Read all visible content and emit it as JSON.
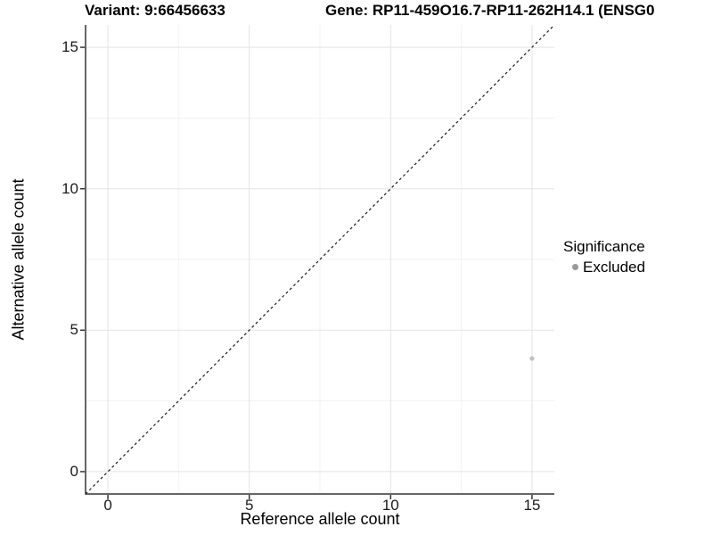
{
  "header": {
    "variant_title": "Variant: 9:66456633",
    "gene_title": "Gene: RP11-459O16.7-RP11-262H14.1 (ENSG0"
  },
  "chart_data": {
    "type": "scatter",
    "xlabel": "Reference allele count",
    "ylabel": "Alternative allele count",
    "xlim": [
      -0.79,
      15.79
    ],
    "ylim": [
      -0.79,
      15.79
    ],
    "xticks": [
      0,
      5,
      10,
      15
    ],
    "yticks": [
      0,
      5,
      10,
      15
    ],
    "xminor": [
      2.5,
      7.5,
      12.5
    ],
    "yminor": [
      2.5,
      7.5,
      12.5
    ],
    "grid": "major+minor",
    "points": [
      {
        "x": 15,
        "y": 4,
        "significance": "Excluded"
      }
    ],
    "identity_line": {
      "slope": 1,
      "intercept": 0,
      "style": "dashed"
    },
    "legend": {
      "title": "Significance",
      "position": "right",
      "items": [
        {
          "label": "Excluded",
          "marker": "dot",
          "color": "#999999"
        }
      ]
    }
  },
  "colors": {
    "background": "#ffffff",
    "axis": "#333333",
    "grid_major": "#e3e3e3",
    "grid_minor": "#f2f2f2",
    "dashed_line": "#1a1a1a",
    "point": "#c0c0c0",
    "legend_dot": "#999999"
  }
}
